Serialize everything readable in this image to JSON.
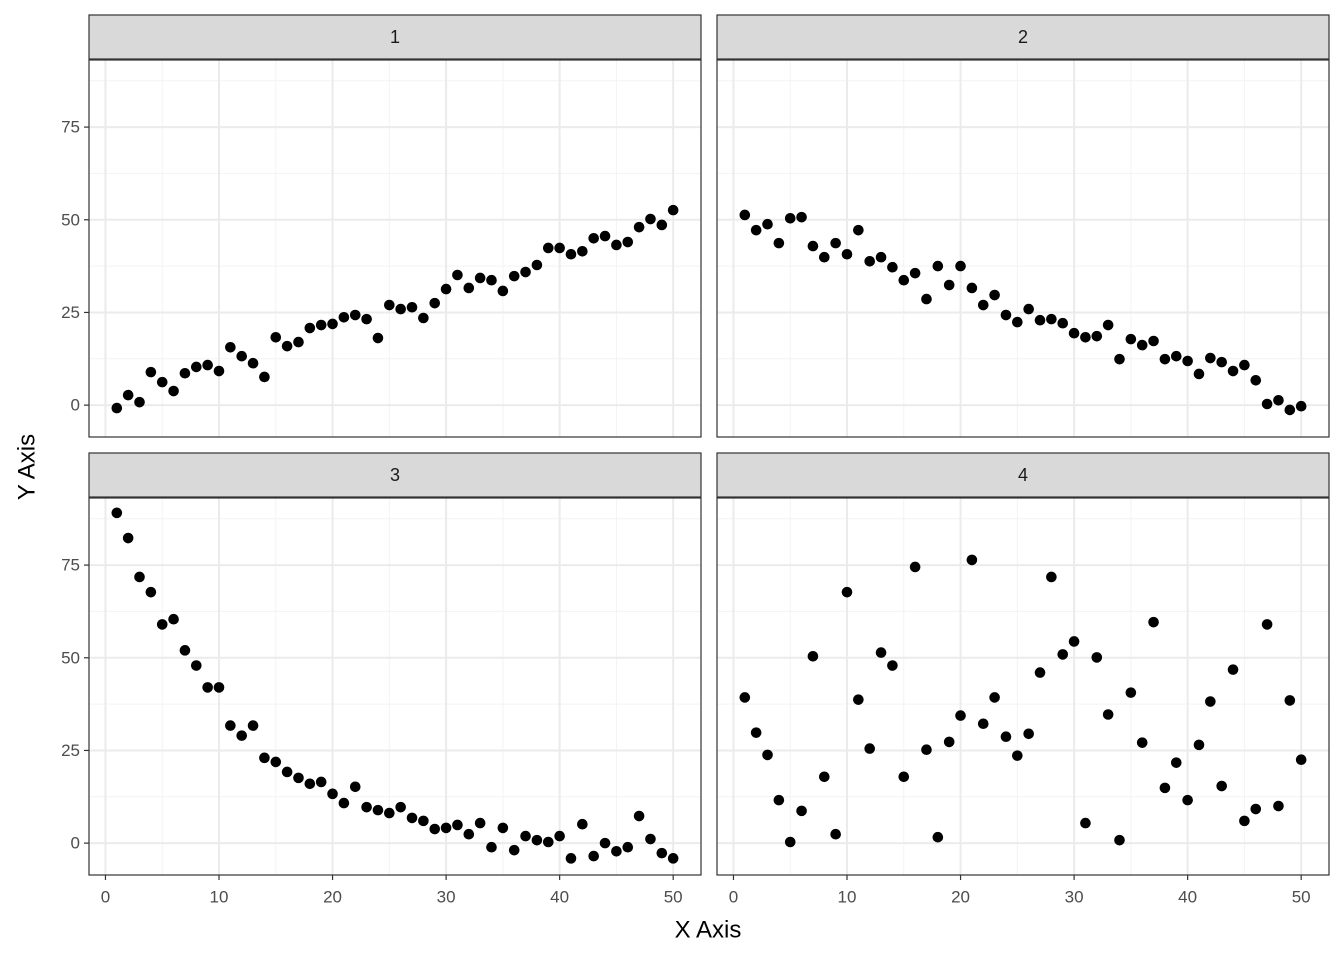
{
  "chart_data": {
    "type": "scatter",
    "x_label": "X Axis",
    "y_label": "Y Axis",
    "xlim": [
      -1.45,
      52.45
    ],
    "ylim": [
      -8.6,
      93.1
    ],
    "xticks": [
      0,
      10,
      20,
      30,
      40,
      50
    ],
    "yticks": [
      0,
      25,
      50,
      75
    ],
    "grid": true,
    "color": "#000000",
    "panels": [
      {
        "title": "1",
        "x": [
          1,
          2,
          3,
          4,
          5,
          6,
          7,
          8,
          9,
          10,
          11,
          12,
          13,
          14,
          15,
          16,
          17,
          18,
          19,
          20,
          21,
          22,
          23,
          24,
          25,
          26,
          27,
          28,
          29,
          30,
          31,
          32,
          33,
          34,
          35,
          36,
          37,
          38,
          39,
          40,
          41,
          42,
          43,
          44,
          45,
          46,
          47,
          48,
          49,
          50
        ],
        "values": [
          -0.8,
          2.7,
          0.8,
          8.9,
          6.2,
          3.8,
          8.6,
          10.3,
          10.8,
          9.2,
          15.6,
          13.2,
          11.3,
          7.6,
          18.3,
          15.9,
          17.0,
          20.8,
          21.6,
          21.9,
          23.7,
          24.3,
          23.2,
          18.1,
          27.0,
          25.9,
          26.4,
          23.5,
          27.5,
          31.3,
          35.1,
          31.6,
          34.3,
          33.7,
          30.8,
          34.8,
          35.9,
          37.8,
          42.4,
          42.4,
          40.7,
          41.5,
          45.0,
          45.6,
          43.2,
          44.0,
          48.0,
          50.2,
          48.6,
          52.6
        ]
      },
      {
        "title": "2",
        "x": [
          1,
          2,
          3,
          4,
          5,
          6,
          7,
          8,
          9,
          10,
          11,
          12,
          13,
          14,
          15,
          16,
          17,
          18,
          19,
          20,
          21,
          22,
          23,
          24,
          25,
          26,
          27,
          28,
          29,
          30,
          31,
          32,
          33,
          34,
          35,
          36,
          37,
          38,
          39,
          40,
          41,
          42,
          43,
          44,
          45,
          46,
          47,
          48,
          49,
          50
        ],
        "values": [
          51.3,
          47.2,
          48.8,
          43.7,
          50.4,
          50.7,
          42.9,
          39.9,
          43.7,
          40.7,
          47.2,
          38.8,
          39.9,
          37.2,
          33.7,
          35.6,
          28.6,
          37.5,
          32.4,
          37.5,
          31.6,
          27.0,
          29.7,
          24.3,
          22.4,
          25.9,
          22.9,
          23.2,
          22.1,
          19.4,
          18.3,
          18.6,
          21.6,
          12.4,
          17.8,
          16.2,
          17.3,
          12.4,
          13.2,
          11.9,
          8.4,
          12.7,
          11.6,
          9.2,
          10.8,
          6.7,
          0.3,
          1.3,
          -1.3,
          -0.3
        ]
      },
      {
        "title": "3",
        "x": [
          1,
          2,
          3,
          4,
          5,
          6,
          7,
          8,
          9,
          10,
          11,
          12,
          13,
          14,
          15,
          16,
          17,
          18,
          19,
          20,
          21,
          22,
          23,
          24,
          25,
          26,
          27,
          28,
          29,
          30,
          31,
          32,
          33,
          34,
          35,
          36,
          37,
          38,
          39,
          40,
          41,
          42,
          43,
          44,
          45,
          46,
          47,
          48,
          49,
          50
        ],
        "values": [
          89.1,
          82.3,
          71.8,
          67.7,
          59.0,
          60.4,
          52.0,
          47.9,
          42.0,
          42.0,
          31.7,
          29.0,
          31.7,
          23.0,
          21.9,
          19.2,
          17.6,
          16.0,
          16.5,
          13.3,
          10.8,
          15.2,
          9.7,
          8.9,
          8.1,
          9.7,
          6.8,
          6.0,
          3.8,
          4.1,
          4.9,
          2.4,
          5.4,
          -1.1,
          4.1,
          -1.9,
          1.9,
          0.8,
          0.3,
          1.9,
          -4.1,
          5.1,
          -3.5,
          0,
          -2.2,
          -1.1,
          7.3,
          1.1,
          -2.7,
          -4.1
        ]
      },
      {
        "title": "4",
        "x": [
          1,
          2,
          3,
          4,
          5,
          6,
          7,
          8,
          9,
          10,
          11,
          12,
          13,
          14,
          15,
          16,
          17,
          18,
          19,
          20,
          21,
          22,
          23,
          24,
          25,
          26,
          27,
          28,
          29,
          30,
          31,
          32,
          33,
          34,
          35,
          36,
          37,
          38,
          39,
          40,
          41,
          42,
          43,
          44,
          45,
          46,
          47,
          48,
          49,
          50
        ],
        "values": [
          39.3,
          29.8,
          23.8,
          11.6,
          0.3,
          8.7,
          50.4,
          17.9,
          2.4,
          67.7,
          38.7,
          25.5,
          51.4,
          47.9,
          17.9,
          74.5,
          25.2,
          1.6,
          27.3,
          34.4,
          76.4,
          32.2,
          39.3,
          28.7,
          23.6,
          29.5,
          46.0,
          71.8,
          50.9,
          54.4,
          5.4,
          50.1,
          34.7,
          0.8,
          40.6,
          27.1,
          59.6,
          14.9,
          21.7,
          11.6,
          26.5,
          38.2,
          15.4,
          46.8,
          6.0,
          9.2,
          59.0,
          10.0,
          38.5,
          22.5
        ]
      }
    ]
  }
}
